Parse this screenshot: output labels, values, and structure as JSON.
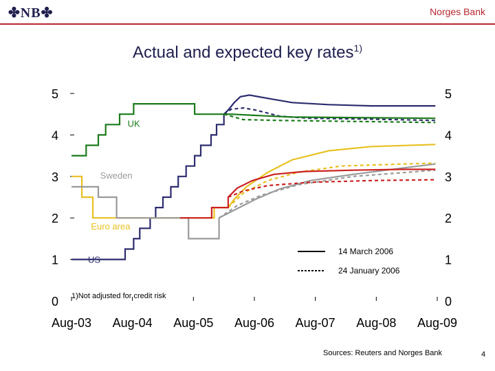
{
  "header": {
    "logo_text": "NB",
    "bank_name": "Norges Bank",
    "title": "Actual and expected key rates",
    "title_footnote_mark": "1)"
  },
  "footer": {
    "sources": "Sources: Reuters and Norges Bank",
    "page_number": "4"
  },
  "chart_data": {
    "type": "line",
    "title": "Actual and expected key rates1)",
    "xlabel": "",
    "ylabel": "",
    "x_ticks": [
      "Aug-03",
      "Aug-04",
      "Aug-05",
      "Aug-06",
      "Aug-07",
      "Aug-08",
      "Aug-09"
    ],
    "y_ticks_left": [
      "5",
      "4",
      "3",
      "2",
      "1",
      "0"
    ],
    "y_ticks_right": [
      "5",
      "4",
      "3",
      "2",
      "1",
      "0"
    ],
    "ylim": [
      0,
      5
    ],
    "xlim": [
      2003.58,
      2009.58
    ],
    "grid": false,
    "series_labels": [
      {
        "text": "UK",
        "x": 2004.5,
        "y": 4.2
      },
      {
        "text": "Sweden",
        "x": 2004.05,
        "y": 2.95
      },
      {
        "text": "Euro area",
        "x": 2003.9,
        "y": 1.72
      },
      {
        "text": "US",
        "x": 2003.85,
        "y": 0.92
      }
    ],
    "footnote": "1)Not adjusted for credit risk",
    "legend": {
      "position": "bottom-right",
      "entries": [
        {
          "label": "14 March 2006",
          "style": "solid"
        },
        {
          "label": "24 January 2006",
          "style": "dotted"
        }
      ]
    },
    "colors": {
      "US": "#2b2b6e",
      "UK": "#1a7a1a",
      "Sweden": "#9a9a9a",
      "Euro area": "#e8c020",
      "Norway": "#cc2020"
    },
    "series": [
      {
        "key": "US",
        "style": "solid",
        "points": [
          [
            2003.58,
            1.0
          ],
          [
            2004.46,
            1.0
          ],
          [
            2004.46,
            1.25
          ],
          [
            2004.6,
            1.25
          ],
          [
            2004.6,
            1.5
          ],
          [
            2004.7,
            1.5
          ],
          [
            2004.7,
            1.75
          ],
          [
            2004.87,
            1.75
          ],
          [
            2004.87,
            2.0
          ],
          [
            2004.96,
            2.0
          ],
          [
            2004.96,
            2.25
          ],
          [
            2005.08,
            2.25
          ],
          [
            2005.08,
            2.5
          ],
          [
            2005.21,
            2.5
          ],
          [
            2005.21,
            2.75
          ],
          [
            2005.33,
            2.75
          ],
          [
            2005.33,
            3.0
          ],
          [
            2005.46,
            3.0
          ],
          [
            2005.46,
            3.25
          ],
          [
            2005.6,
            3.25
          ],
          [
            2005.6,
            3.5
          ],
          [
            2005.7,
            3.5
          ],
          [
            2005.7,
            3.75
          ],
          [
            2005.87,
            3.75
          ],
          [
            2005.87,
            4.0
          ],
          [
            2005.96,
            4.0
          ],
          [
            2005.96,
            4.25
          ],
          [
            2006.08,
            4.25
          ],
          [
            2006.08,
            4.5
          ],
          [
            2006.15,
            4.6
          ],
          [
            2006.25,
            4.78
          ],
          [
            2006.35,
            4.92
          ],
          [
            2006.5,
            4.96
          ],
          [
            2006.8,
            4.88
          ],
          [
            2007.2,
            4.78
          ],
          [
            2007.8,
            4.73
          ],
          [
            2008.5,
            4.7
          ],
          [
            2009.2,
            4.7
          ],
          [
            2009.55,
            4.7
          ]
        ]
      },
      {
        "key": "US",
        "style": "dotted",
        "points": [
          [
            2006.08,
            4.5
          ],
          [
            2006.2,
            4.62
          ],
          [
            2006.4,
            4.65
          ],
          [
            2006.6,
            4.6
          ],
          [
            2007.0,
            4.45
          ],
          [
            2007.5,
            4.4
          ],
          [
            2008.5,
            4.38
          ],
          [
            2009.55,
            4.35
          ]
        ]
      },
      {
        "key": "UK",
        "style": "solid",
        "points": [
          [
            2003.58,
            3.5
          ],
          [
            2003.82,
            3.5
          ],
          [
            2003.82,
            3.75
          ],
          [
            2004.02,
            3.75
          ],
          [
            2004.02,
            4.0
          ],
          [
            2004.14,
            4.0
          ],
          [
            2004.14,
            4.25
          ],
          [
            2004.37,
            4.25
          ],
          [
            2004.37,
            4.5
          ],
          [
            2004.6,
            4.5
          ],
          [
            2004.6,
            4.75
          ],
          [
            2005.6,
            4.75
          ],
          [
            2005.6,
            4.5
          ],
          [
            2006.2,
            4.5
          ],
          [
            2006.6,
            4.47
          ],
          [
            2007.2,
            4.43
          ],
          [
            2008.0,
            4.42
          ],
          [
            2009.55,
            4.4
          ]
        ]
      },
      {
        "key": "UK",
        "style": "dotted",
        "points": [
          [
            2006.08,
            4.5
          ],
          [
            2006.4,
            4.37
          ],
          [
            2007.0,
            4.35
          ],
          [
            2008.0,
            4.33
          ],
          [
            2009.55,
            4.3
          ]
        ]
      },
      {
        "key": "Euro area",
        "style": "solid",
        "points": [
          [
            2003.58,
            3.0
          ],
          [
            2003.75,
            3.0
          ],
          [
            2003.75,
            2.5
          ],
          [
            2003.93,
            2.5
          ],
          [
            2003.93,
            2.0
          ],
          [
            2005.92,
            2.0
          ],
          [
            2005.92,
            2.25
          ],
          [
            2006.15,
            2.25
          ],
          [
            2006.25,
            2.45
          ],
          [
            2006.45,
            2.75
          ],
          [
            2006.8,
            3.1
          ],
          [
            2007.2,
            3.4
          ],
          [
            2007.8,
            3.62
          ],
          [
            2008.5,
            3.72
          ],
          [
            2009.55,
            3.77
          ]
        ]
      },
      {
        "key": "Euro area",
        "style": "dotted",
        "points": [
          [
            2006.15,
            2.25
          ],
          [
            2006.4,
            2.6
          ],
          [
            2006.8,
            2.9
          ],
          [
            2007.3,
            3.1
          ],
          [
            2008.0,
            3.25
          ],
          [
            2009.0,
            3.3
          ],
          [
            2009.55,
            3.32
          ]
        ]
      },
      {
        "key": "Sweden",
        "style": "solid",
        "points": [
          [
            2003.58,
            2.75
          ],
          [
            2004.02,
            2.75
          ],
          [
            2004.02,
            2.5
          ],
          [
            2004.32,
            2.5
          ],
          [
            2004.32,
            2.0
          ],
          [
            2005.5,
            2.0
          ],
          [
            2005.5,
            1.5
          ],
          [
            2006.0,
            1.5
          ],
          [
            2006.0,
            2.0
          ],
          [
            2006.2,
            2.15
          ],
          [
            2006.6,
            2.45
          ],
          [
            2007.0,
            2.7
          ],
          [
            2007.5,
            2.9
          ],
          [
            2008.2,
            3.05
          ],
          [
            2009.0,
            3.2
          ],
          [
            2009.55,
            3.3
          ]
        ]
      },
      {
        "key": "Sweden",
        "style": "dotted",
        "points": [
          [
            2006.0,
            2.0
          ],
          [
            2006.3,
            2.3
          ],
          [
            2006.7,
            2.55
          ],
          [
            2007.3,
            2.8
          ],
          [
            2008.2,
            3.0
          ],
          [
            2009.55,
            3.15
          ]
        ]
      },
      {
        "key": "Norway",
        "style": "solid",
        "points": [
          [
            2005.36,
            2.0
          ],
          [
            2005.88,
            2.0
          ],
          [
            2005.88,
            2.25
          ],
          [
            2006.15,
            2.25
          ],
          [
            2006.15,
            2.5
          ],
          [
            2006.3,
            2.72
          ],
          [
            2006.55,
            2.9
          ],
          [
            2006.9,
            3.05
          ],
          [
            2007.4,
            3.12
          ],
          [
            2008.2,
            3.15
          ],
          [
            2009.0,
            3.17
          ],
          [
            2009.55,
            3.17
          ]
        ]
      },
      {
        "key": "Norway",
        "style": "dotted",
        "points": [
          [
            2006.15,
            2.5
          ],
          [
            2006.4,
            2.65
          ],
          [
            2006.8,
            2.78
          ],
          [
            2007.5,
            2.86
          ],
          [
            2008.5,
            2.9
          ],
          [
            2009.55,
            2.92
          ]
        ]
      }
    ]
  }
}
